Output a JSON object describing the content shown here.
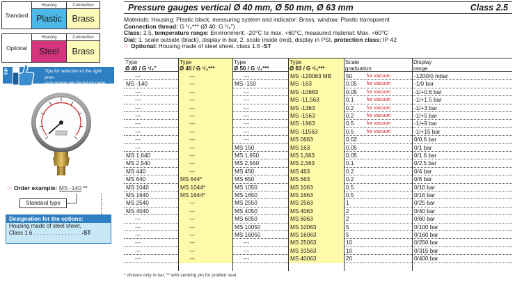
{
  "selector": {
    "standard": {
      "label": "Standard",
      "housing_hdr": "Housing",
      "connection_hdr": "Connection",
      "housing": "Plastic",
      "connection": "Brass",
      "housing_color": "#4db8e8",
      "connection_color": "#fdf9b8"
    },
    "optional": {
      "label": "Optional",
      "housing_hdr": "Housing",
      "connection_hdr": "Connection",
      "housing": "Steel",
      "connection": "Brass",
      "housing_color": "#d4357d",
      "connection_color": "#fdf9b8"
    }
  },
  "tip": {
    "tag": "TIP",
    "text1": "Tips for selection of the right pres-",
    "text2": "sure gauge are found on page 380"
  },
  "order": {
    "label": "Order example:",
    "code": "MS -140",
    "stars": "**",
    "standard_type": "Standard type"
  },
  "designation": {
    "head": "Designation for the options:",
    "line1": "Housing made of steel sheet,",
    "line2": "Class 1.6 . . . . . . . . . . . . . . . .",
    "code": "-ST"
  },
  "title": {
    "main": "Pressure gauges vertical Ø 40 mm, Ø 50 mm, Ø 63 mm",
    "class": "Class 2.5"
  },
  "desc": {
    "l1": "Materials: Housing: Plastic black, measuring system and indicator: Brass, window: Plastic transparent",
    "l2b": "Connection thread:",
    "l2": " G ¹/₄*** (Ø 40: G ¹/₈\")",
    "l3b": "Class:",
    "l3a": " 2.5, ",
    "l3b2": "temperature range:",
    "l3": " Environment: -20°C to max. +60°C, measured material: Max. +60°C",
    "l4b": "Dial:",
    "l4": " 1. scale outside (black), display in bar, 2. scale inside (red), display in PSI, ",
    "l4c": "protection class:",
    "l4d": " IP 42",
    "l5b": "Optional:",
    "l5": " Housing made of steel sheet, class 1.6 ",
    "l5c": "-ST"
  },
  "table": {
    "headers": [
      {
        "t": "Type",
        "s": "Ø 40 / G ¹/₈\""
      },
      {
        "t": "Type",
        "s": "Ø 40 / G ¹/₄***"
      },
      {
        "t": "Type",
        "s": "Ø 50 / G ¹/₄***"
      },
      {
        "t": "Type",
        "s": "Ø 63 / G ¹/₄***"
      },
      {
        "t": "Scale",
        "s": "graduation"
      },
      {
        "t": "Display",
        "s": "range"
      }
    ],
    "rows": [
      [
        "---",
        "---",
        "---",
        "MS -120063 MB",
        "50",
        "for vacuum",
        "-1200/0 mbar"
      ],
      [
        "MS -140",
        "---",
        "MS -150",
        "MS -163",
        "0.05",
        "for vacuum",
        "-1/0 bar"
      ],
      [
        "---",
        "---",
        "---",
        "MS -10663",
        "0.05",
        "for vacuum",
        "-1/+0.6 bar"
      ],
      [
        "---",
        "---",
        "---",
        "MS -11,563",
        "0.1",
        "for vacuum",
        "-1/+1.5 bar"
      ],
      [
        "---",
        "---",
        "---",
        "MS -1363",
        "0.2",
        "for vacuum",
        "-1/+3 bar"
      ],
      [
        "---",
        "---",
        "---",
        "MS -1563",
        "0.2",
        "for vacuum",
        "-1/+5 bar"
      ],
      [
        "---",
        "---",
        "---",
        "MS -1963",
        "0.5",
        "for vacuum",
        "-1/+9 bar"
      ],
      [
        "---",
        "---",
        "---",
        "MS -11563",
        "0.5",
        "for vacuum",
        "-1/+15 bar"
      ],
      [
        "---",
        "---",
        "---",
        "MS 0663",
        "0.02",
        "",
        "0/0.6 bar"
      ],
      [
        "---",
        "---",
        "MS 150",
        "MS 163",
        "0.05",
        "",
        "0/1 bar"
      ],
      [
        "MS 1,640",
        "---",
        "MS 1,650",
        "MS 1,663",
        "0.05",
        "",
        "0/1.6 bar"
      ],
      [
        "MS 2,540",
        "---",
        "MS 2,550",
        "MS 2,563",
        "0.1",
        "",
        "0/2.5 bar"
      ],
      [
        "MS 440",
        "---",
        "MS 450",
        "MS 463",
        "0.2",
        "",
        "0/4 bar"
      ],
      [
        "MS 640",
        "MS 644*",
        "MS 650",
        "MS 663",
        "0.2",
        "",
        "0/6 bar"
      ],
      [
        "MS 1040",
        "MS 1044*",
        "MS 1050",
        "MS 1063",
        "0.5",
        "",
        "0/10 bar"
      ],
      [
        "MS 1640",
        "MS 1644*",
        "MS 1650",
        "MS 1663",
        "0.5",
        "",
        "0/16 bar"
      ],
      [
        "MS 2540",
        "---",
        "MS 2550",
        "MS 2563",
        "1",
        "",
        "0/25 bar"
      ],
      [
        "MS 4040",
        "---",
        "MS 4050",
        "MS 4063",
        "2",
        "",
        "0/40 bar"
      ],
      [
        "---",
        "---",
        "MS 6050",
        "MS 6063",
        "2",
        "",
        "0/60 bar"
      ],
      [
        "---",
        "---",
        "MS 10050",
        "MS 10063",
        "5",
        "",
        "0/100 bar"
      ],
      [
        "---",
        "---",
        "MS 16050",
        "MS 16063",
        "5",
        "",
        "0/160 bar"
      ],
      [
        "---",
        "---",
        "---",
        "MS 25063",
        "10",
        "",
        "0/250 bar"
      ],
      [
        "---",
        "---",
        "---",
        "MS 31563",
        "10",
        "",
        "0/315 bar"
      ],
      [
        "---",
        "---",
        "---",
        "MS 40063",
        "20",
        "",
        "0/400 bar"
      ]
    ]
  },
  "footnote": "* division only in bar, ** with centring pin for profiled seal"
}
